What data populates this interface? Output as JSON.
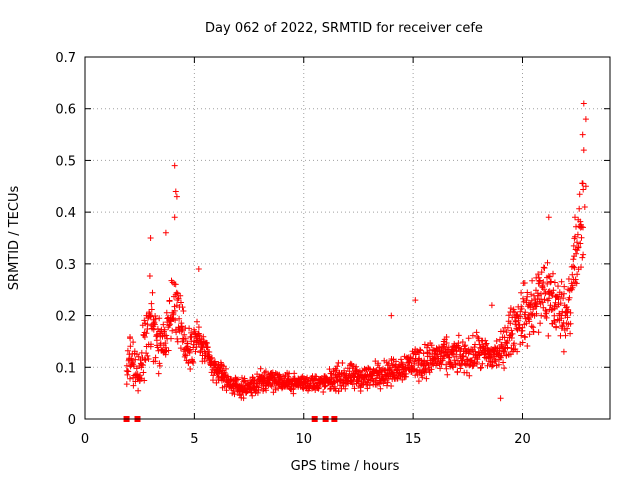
{
  "chart_data": {
    "type": "scatter",
    "title": "Day 062 of 2022, SRMTID for receiver cefe",
    "xlabel": "GPS time / hours",
    "ylabel": "SRMTID / TECUs",
    "xlim": [
      0,
      24
    ],
    "ylim": [
      0,
      0.7
    ],
    "xticks": [
      0,
      5,
      10,
      15,
      20
    ],
    "yticks": [
      0,
      0.1,
      0.2,
      0.3,
      0.4,
      0.5,
      0.6,
      0.7
    ],
    "grid": true,
    "marker": "plus",
    "color": "#ff0000",
    "series": [
      {
        "name": "SRMTID",
        "envelope_x": [
          1.9,
          2.0,
          2.2,
          2.5,
          2.8,
          3.0,
          3.3,
          3.6,
          4.0,
          4.3,
          4.6,
          5.0,
          5.4,
          5.8,
          6.2,
          6.6,
          7.0,
          7.5,
          8.0,
          8.5,
          9.0,
          9.5,
          10.0,
          10.5,
          11.0,
          11.5,
          12.0,
          12.5,
          13.0,
          13.5,
          14.0,
          14.5,
          15.0,
          15.5,
          16.0,
          16.5,
          17.0,
          17.5,
          18.0,
          18.5,
          19.0,
          19.5,
          20.0,
          20.5,
          21.0,
          21.5,
          22.0,
          22.3,
          22.6,
          22.8
        ],
        "envelope_mid": [
          0.08,
          0.12,
          0.1,
          0.09,
          0.17,
          0.2,
          0.15,
          0.14,
          0.2,
          0.22,
          0.13,
          0.16,
          0.14,
          0.1,
          0.09,
          0.07,
          0.06,
          0.06,
          0.07,
          0.08,
          0.07,
          0.07,
          0.07,
          0.07,
          0.07,
          0.08,
          0.08,
          0.08,
          0.08,
          0.09,
          0.09,
          0.1,
          0.11,
          0.11,
          0.12,
          0.12,
          0.12,
          0.12,
          0.13,
          0.12,
          0.13,
          0.17,
          0.2,
          0.21,
          0.25,
          0.22,
          0.2,
          0.28,
          0.34,
          0.4
        ],
        "envelope_spread": [
          0.03,
          0.05,
          0.05,
          0.04,
          0.08,
          0.1,
          0.07,
          0.06,
          0.09,
          0.1,
          0.05,
          0.05,
          0.04,
          0.03,
          0.03,
          0.02,
          0.02,
          0.02,
          0.03,
          0.03,
          0.02,
          0.02,
          0.02,
          0.02,
          0.02,
          0.03,
          0.03,
          0.03,
          0.03,
          0.03,
          0.03,
          0.03,
          0.04,
          0.04,
          0.04,
          0.04,
          0.04,
          0.04,
          0.04,
          0.04,
          0.04,
          0.06,
          0.07,
          0.08,
          0.1,
          0.08,
          0.07,
          0.1,
          0.13,
          0.15
        ],
        "outliers": [
          [
            4.1,
            0.49
          ],
          [
            4.15,
            0.44
          ],
          [
            4.2,
            0.43
          ],
          [
            4.1,
            0.39
          ],
          [
            3.7,
            0.36
          ],
          [
            3.0,
            0.35
          ],
          [
            5.2,
            0.29
          ],
          [
            22.8,
            0.61
          ],
          [
            22.9,
            0.58
          ],
          [
            22.75,
            0.55
          ],
          [
            22.8,
            0.52
          ],
          [
            22.9,
            0.45
          ],
          [
            22.85,
            0.41
          ],
          [
            21.2,
            0.39
          ],
          [
            22.4,
            0.39
          ],
          [
            19.0,
            0.04
          ],
          [
            18.6,
            0.22
          ],
          [
            15.1,
            0.23
          ],
          [
            14.0,
            0.2
          ]
        ]
      }
    ],
    "baseline_markers_x": [
      1.9,
      2.4,
      10.5,
      11.0,
      11.4
    ]
  }
}
